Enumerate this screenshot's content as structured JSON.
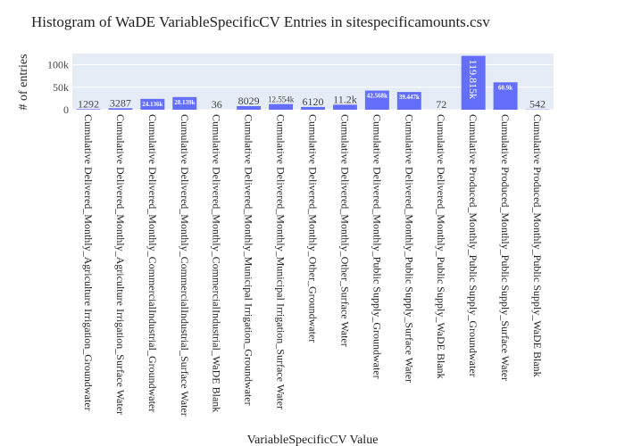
{
  "chart_data": {
    "type": "bar",
    "title": "Histogram of WaDE VariableSpecificCV Entries in sitespecificamounts.csv",
    "xlabel": "VariableSpecificCV Value",
    "ylabel": "# of entries",
    "ylim": [
      0,
      125000
    ],
    "yticks": [
      0,
      50000,
      100000
    ],
    "ytick_labels": [
      "0",
      "50k",
      "100k"
    ],
    "grid": true,
    "bar_color": "#636efa",
    "plot_bg": "#e5ecf6",
    "categories": [
      "Cumulative Delivered_Monthly_Agriculture Irrigation_Groundwater",
      "Cumulative Delivered_Monthly_Agriculture Irrigation_Surface Water",
      "Cumulative Delivered_Monthly_CommercialIndustrial_Groundwater",
      "Cumulative Delivered_Monthly_CommercialIndustrial_Surface Water",
      "Cumulative Delivered_Monthly_CommercialIndustrial_WaDE Blank",
      "Cumulative Delivered_Monthly_Municipal Irrigation_Groundwater",
      "Cumulative Delivered_Monthly_Municipal Irrigation_Surface Water",
      "Cumulative Delivered_Monthly_Other_Groundwater",
      "Cumulative Delivered_Monthly_Other_Surface Water",
      "Cumulative Delivered_Monthly_Public Supply_Groundwater",
      "Cumulative Delivered_Monthly_Public Supply_Surface Water",
      "Cumulative Delivered_Monthly_Public Supply_WaDE Blank",
      "Cumulative Produced_Monthly_Public Supply_Groundwater",
      "Cumulative Produced_Monthly_Public Supply_Surface Water",
      "Cumulative Produced_Monthly_Public Supply_WaDE Blank"
    ],
    "values": [
      1292,
      3287,
      24136,
      28139,
      36,
      8029,
      12554,
      6120,
      11200,
      42568,
      39447,
      72,
      119815,
      60900,
      542
    ],
    "data_labels": [
      "1292",
      "3287",
      "24.136k",
      "28.139k",
      "36",
      "8029",
      "12.554k",
      "6120",
      "11.2k",
      "42.568k",
      "39.447k",
      "72",
      "119.815k",
      "60.9k",
      "542"
    ]
  }
}
